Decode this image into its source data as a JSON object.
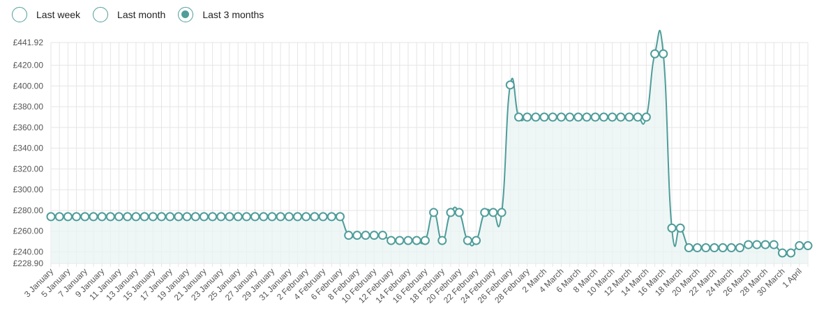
{
  "range_options": [
    {
      "label": "Last week",
      "selected": false
    },
    {
      "label": "Last month",
      "selected": false
    },
    {
      "label": "Last 3 months",
      "selected": true
    }
  ],
  "colors": {
    "line": "#4e9d9a",
    "fill": "#e9f3f3",
    "grid": "#e5e5e5",
    "point_fill": "#ffffff"
  },
  "chart_data": {
    "type": "area",
    "title": "",
    "xlabel": "",
    "ylabel": "",
    "currency": "£",
    "ylim": [
      228.9,
      441.92
    ],
    "y_ticks": [
      228.9,
      240.0,
      260.0,
      280.0,
      300.0,
      320.0,
      340.0,
      360.0,
      380.0,
      400.0,
      420.0,
      441.92
    ],
    "grid": true,
    "x_tick_labels": [
      "3 January",
      "5 January",
      "7 January",
      "9 January",
      "11 January",
      "13 January",
      "15 January",
      "17 January",
      "19 January",
      "21 January",
      "23 January",
      "25 January",
      "27 January",
      "29 January",
      "31 January",
      "2 February",
      "4 February",
      "6 February",
      "8 February",
      "10 February",
      "12 February",
      "14 February",
      "16 February",
      "18 February",
      "20 February",
      "22 February",
      "24 February",
      "26 February",
      "28 February",
      "2 March",
      "4 March",
      "6 March",
      "8 March",
      "10 March",
      "12 March",
      "14 March",
      "16 March",
      "18 March",
      "20 March",
      "22 March",
      "24 March",
      "26 March",
      "28 March",
      "30 March",
      "1 April"
    ],
    "x": [
      "3 January",
      "4 January",
      "5 January",
      "6 January",
      "7 January",
      "8 January",
      "9 January",
      "10 January",
      "11 January",
      "12 January",
      "13 January",
      "14 January",
      "15 January",
      "16 January",
      "17 January",
      "18 January",
      "19 January",
      "20 January",
      "21 January",
      "22 January",
      "23 January",
      "24 January",
      "25 January",
      "26 January",
      "27 January",
      "28 January",
      "29 January",
      "30 January",
      "31 January",
      "1 February",
      "2 February",
      "3 February",
      "4 February",
      "5 February",
      "6 February",
      "7 February",
      "8 February",
      "9 February",
      "10 February",
      "11 February",
      "12 February",
      "13 February",
      "14 February",
      "15 February",
      "16 February",
      "17 February",
      "18 February",
      "19 February",
      "20 February",
      "21 February",
      "22 February",
      "23 February",
      "24 February",
      "25 February",
      "26 February",
      "27 February",
      "28 February",
      "1 March",
      "2 March",
      "3 March",
      "4 March",
      "5 March",
      "6 March",
      "7 March",
      "8 March",
      "9 March",
      "10 March",
      "11 March",
      "12 March",
      "13 March",
      "14 March",
      "15 March",
      "16 March",
      "17 March",
      "18 March",
      "19 March",
      "20 March",
      "21 March",
      "22 March",
      "23 March",
      "24 March",
      "25 March",
      "26 March",
      "27 March",
      "28 March",
      "29 March",
      "30 March",
      "31 March",
      "1 April",
      "2 April"
    ],
    "series": [
      {
        "values": [
          274,
          274,
          274,
          274,
          274,
          274,
          274,
          274,
          274,
          274,
          274,
          274,
          274,
          274,
          274,
          274,
          274,
          274,
          274,
          274,
          274,
          274,
          274,
          274,
          274,
          274,
          274,
          274,
          274,
          274,
          274,
          274,
          274,
          274,
          274,
          256,
          256,
          256,
          256,
          256,
          251,
          251,
          251,
          251,
          251,
          278,
          251,
          278,
          278,
          251,
          251,
          278,
          278,
          278,
          401,
          370,
          370,
          370,
          370,
          370,
          370,
          370,
          370,
          370,
          370,
          370,
          370,
          370,
          370,
          370,
          370,
          431,
          431,
          263,
          263,
          244,
          244,
          244,
          244,
          244,
          244,
          244,
          247,
          247,
          247,
          247,
          239,
          239,
          246,
          246
        ]
      }
    ]
  }
}
